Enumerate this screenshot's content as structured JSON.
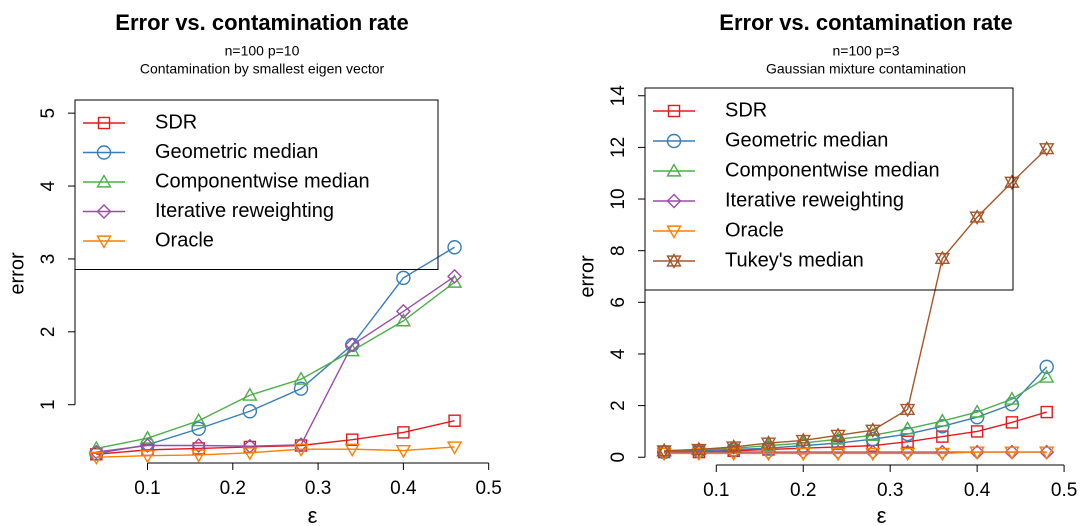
{
  "chart_data": [
    {
      "type": "line",
      "title": "Error vs. contamination rate",
      "subtitle": [
        "n=100   p=10",
        "Contamination by smallest eigen vector"
      ],
      "x_label": "ε",
      "y_label": "error",
      "x": [
        0.04,
        0.1,
        0.16,
        0.22,
        0.28,
        0.34,
        0.4,
        0.46
      ],
      "xlim": [
        0.015,
        0.525
      ],
      "xticks": [
        0.1,
        0.2,
        0.3,
        0.4,
        0.5
      ],
      "ylim": [
        0.2,
        5.4
      ],
      "yticks": [
        1,
        2,
        3,
        4,
        5
      ],
      "legend": "topleft",
      "series": [
        {
          "name": "SDR",
          "color": "#e41a1c",
          "marker": "square",
          "values": [
            0.32,
            0.38,
            0.4,
            0.42,
            0.44,
            0.52,
            0.62,
            0.78
          ]
        },
        {
          "name": "Geometric median",
          "color": "#377eb8",
          "marker": "circle",
          "values": [
            0.33,
            0.45,
            0.67,
            0.91,
            1.22,
            1.82,
            2.74,
            3.16
          ]
        },
        {
          "name": "Componentwise median",
          "color": "#4daf4a",
          "marker": "triangle",
          "values": [
            0.4,
            0.54,
            0.78,
            1.13,
            1.35,
            1.74,
            2.15,
            2.68
          ]
        },
        {
          "name": "Iterative reweighting",
          "color": "#984ea3",
          "marker": "diamond",
          "values": [
            0.35,
            0.44,
            0.44,
            0.43,
            0.45,
            1.82,
            2.28,
            2.76
          ]
        },
        {
          "name": "Oracle",
          "color": "#ff7f00",
          "marker": "triangle-down",
          "values": [
            0.28,
            0.3,
            0.31,
            0.34,
            0.39,
            0.39,
            0.37,
            0.42
          ]
        }
      ]
    },
    {
      "type": "line",
      "title": "Error vs. contamination rate",
      "subtitle": [
        "n=100   p=3",
        "Gaussian mixture contamination"
      ],
      "x_label": "ε",
      "y_label": "error",
      "x": [
        0.04,
        0.08,
        0.12,
        0.16,
        0.2,
        0.24,
        0.28,
        0.32,
        0.36,
        0.4,
        0.44,
        0.48
      ],
      "xlim": [
        0.018,
        0.516
      ],
      "xticks": [
        0.1,
        0.2,
        0.3,
        0.4,
        0.5
      ],
      "ylim": [
        -0.3,
        14.3
      ],
      "yticks": [
        0,
        2,
        4,
        6,
        8,
        10,
        12,
        14
      ],
      "legend": "topleft",
      "series": [
        {
          "name": "SDR",
          "color": "#e41a1c",
          "marker": "square",
          "values": [
            0.2,
            0.2,
            0.25,
            0.3,
            0.35,
            0.4,
            0.45,
            0.6,
            0.8,
            1.0,
            1.35,
            1.75
          ]
        },
        {
          "name": "Geometric median",
          "color": "#377eb8",
          "marker": "circle",
          "values": [
            0.2,
            0.25,
            0.3,
            0.35,
            0.45,
            0.55,
            0.7,
            0.9,
            1.2,
            1.55,
            2.05,
            3.5
          ]
        },
        {
          "name": "Componentwise median",
          "color": "#4daf4a",
          "marker": "triangle",
          "values": [
            0.25,
            0.3,
            0.35,
            0.45,
            0.55,
            0.7,
            0.85,
            1.1,
            1.4,
            1.75,
            2.25,
            3.1
          ]
        },
        {
          "name": "Iterative reweighting",
          "color": "#984ea3",
          "marker": "diamond",
          "values": [
            0.2,
            0.2,
            0.2,
            0.2,
            0.2,
            0.2,
            0.2,
            0.2,
            0.2,
            0.2,
            0.2,
            0.2
          ]
        },
        {
          "name": "Oracle",
          "color": "#ff7f00",
          "marker": "triangle-down",
          "values": [
            0.15,
            0.15,
            0.15,
            0.15,
            0.15,
            0.15,
            0.15,
            0.15,
            0.15,
            0.2,
            0.2,
            0.2
          ]
        },
        {
          "name": "Tukey's median",
          "color": "#a65628",
          "marker": "star",
          "values": [
            0.25,
            0.3,
            0.4,
            0.55,
            0.65,
            0.85,
            1.05,
            1.85,
            7.7,
            9.3,
            10.65,
            11.95
          ]
        }
      ]
    }
  ]
}
